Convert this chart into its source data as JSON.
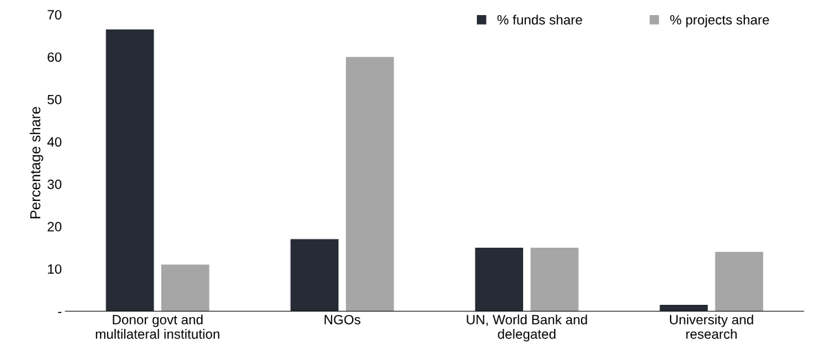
{
  "chart_data": {
    "type": "bar",
    "ylabel": "Percentage share",
    "categories": [
      "Donor govt and\nmultilateral institution",
      "NGOs",
      "UN, World Bank and\ndelegated",
      "University and\nresearch"
    ],
    "series": [
      {
        "name": "% funds share",
        "color": "#262b35",
        "values": [
          66.5,
          17,
          15,
          1.5
        ]
      },
      {
        "name": "% projects share",
        "color": "#a6a6a6",
        "values": [
          11,
          60,
          15,
          14
        ]
      }
    ],
    "ylim": [
      0,
      70
    ],
    "yticks": [
      {
        "value": 0,
        "label": "-"
      },
      10,
      20,
      30,
      40,
      50,
      60,
      70
    ],
    "legend": "top right",
    "grid": false
  }
}
